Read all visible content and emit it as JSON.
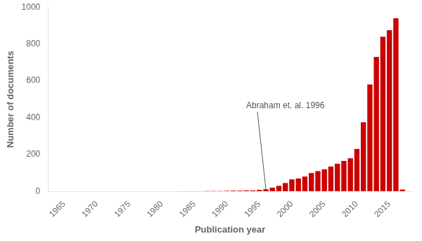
{
  "chart_data": {
    "type": "bar",
    "x": [
      1965,
      1966,
      1967,
      1968,
      1969,
      1970,
      1971,
      1972,
      1973,
      1974,
      1975,
      1976,
      1977,
      1978,
      1979,
      1980,
      1981,
      1982,
      1983,
      1984,
      1985,
      1986,
      1987,
      1988,
      1989,
      1990,
      1991,
      1992,
      1993,
      1994,
      1995,
      1996,
      1997,
      1998,
      1999,
      2000,
      2001,
      2002,
      2003,
      2004,
      2005,
      2006,
      2007,
      2008,
      2009,
      2010,
      2011,
      2012,
      2013,
      2014,
      2015,
      2016,
      2017
    ],
    "values": [
      0,
      0,
      0,
      0,
      0,
      0,
      0,
      0,
      0,
      0,
      0,
      0,
      0,
      0,
      0,
      0,
      0,
      0,
      1,
      1,
      1,
      1,
      2,
      2,
      2,
      3,
      4,
      4,
      5,
      5,
      8,
      12,
      20,
      30,
      45,
      65,
      70,
      80,
      100,
      110,
      120,
      135,
      150,
      165,
      180,
      230,
      375,
      580,
      730,
      840,
      875,
      940,
      10
    ],
    "color": "#cc0000",
    "xlabel": "Publication year",
    "ylabel": "Number of documents",
    "xlim": [
      1962.5,
      2018.5
    ],
    "xticks": [
      1965,
      1970,
      1975,
      1980,
      1985,
      1990,
      1995,
      2000,
      2005,
      2010,
      2015
    ],
    "ylim": [
      0,
      1000
    ],
    "yticks": [
      0,
      200,
      400,
      600,
      800,
      1000
    ],
    "grid": false,
    "annotations": [
      {
        "text": "Abraham et. al. 1996",
        "x": 1996,
        "y": 12
      }
    ]
  }
}
